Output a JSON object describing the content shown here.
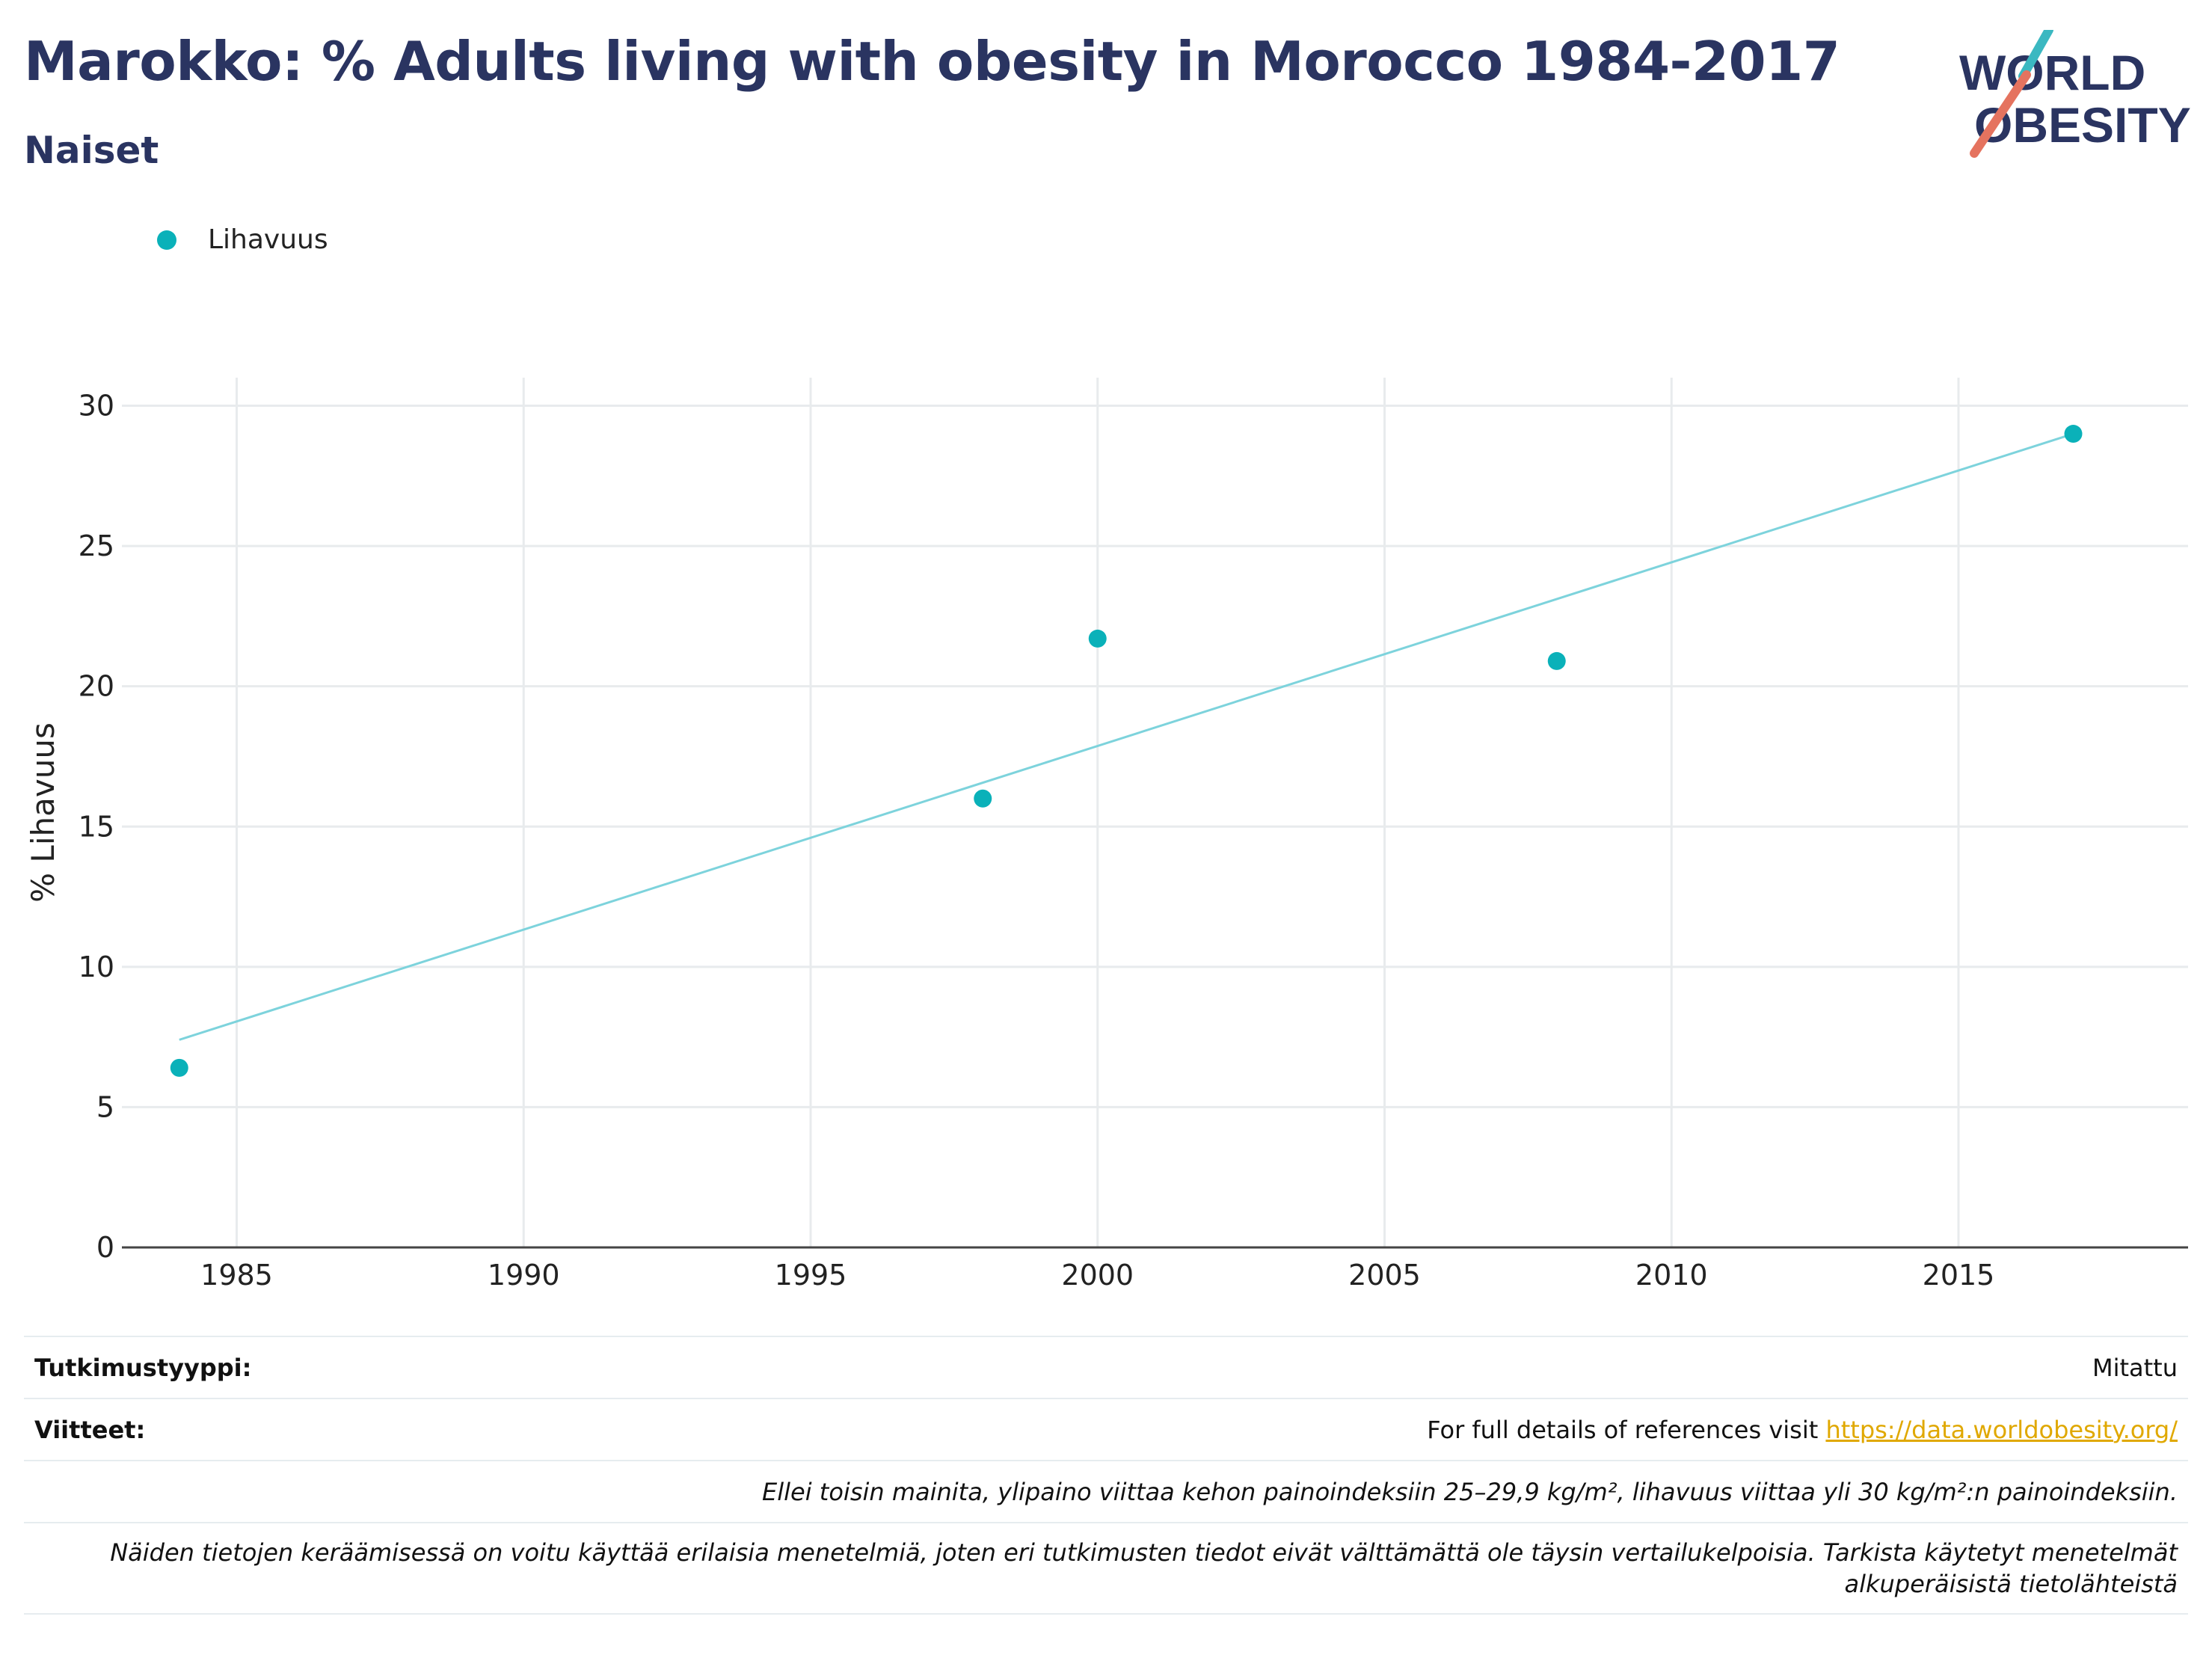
{
  "header": {
    "title": "Marokko: % Adults living with obesity in Morocco 1984-2017",
    "subtitle": "Naiset"
  },
  "logo": {
    "line1": "WORLD",
    "line2": "OBESITY"
  },
  "colors": {
    "series": "#0ab1b9",
    "trend": "#7dd3dc",
    "title": "#2a3461",
    "link": "#e0a800"
  },
  "chart_data": {
    "type": "scatter",
    "title": "Marokko: % Adults living with obesity in Morocco 1984-2017",
    "subtitle": "Naiset",
    "ylabel": "% Lihavuus",
    "xlabel": "",
    "xlim": [
      1983,
      2019
    ],
    "ylim": [
      0,
      31
    ],
    "x_ticks": [
      1985,
      1990,
      1995,
      2000,
      2005,
      2010,
      2015
    ],
    "y_ticks": [
      0,
      5,
      10,
      15,
      20,
      25,
      30
    ],
    "grid": true,
    "legend": "top-left",
    "series": [
      {
        "name": "Lihavuus",
        "points": [
          {
            "x": 1984,
            "y": 6.4
          },
          {
            "x": 1998,
            "y": 16.0
          },
          {
            "x": 2000,
            "y": 21.7
          },
          {
            "x": 2008,
            "y": 20.9
          },
          {
            "x": 2017,
            "y": 29.0
          }
        ]
      }
    ],
    "trendline": [
      {
        "x": 1984,
        "y": 7.4
      },
      {
        "x": 2017,
        "y": 29.0
      }
    ]
  },
  "info": {
    "study_type_label": "Tutkimustyyppi:",
    "study_type_value": "Mitattu",
    "references_label": "Viitteet:",
    "references_text": "For full details of references visit",
    "references_link": "https://data.worldobesity.org/",
    "note1": "Ellei toisin mainita, ylipaino viittaa kehon painoindeksiin 25–29,9 kg/m², lihavuus viittaa yli 30 kg/m²:n painoindeksiin.",
    "note2_line1": "Näiden tietojen keräämisessä on voitu käyttää erilaisia menetelmiä, joten eri tutkimusten tiedot eivät välttämättä ole täysin vertailukelpoisia. Tarkista käytetyt menetelmät",
    "note2_line2": "alkuperäisistä tietolähteistä"
  }
}
